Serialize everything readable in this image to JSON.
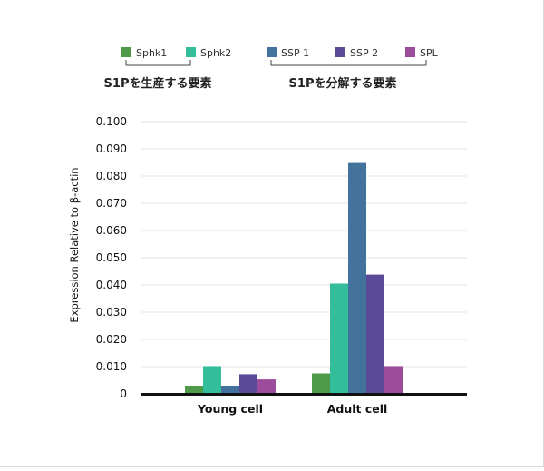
{
  "chart_data": {
    "type": "bar",
    "categories": [
      "Young cell",
      "Adult cell"
    ],
    "series": [
      {
        "name": "Sphk1",
        "color": "#4e9a48",
        "values": [
          0.003,
          0.0075
        ]
      },
      {
        "name": "Sphk2",
        "color": "#33bd9b",
        "values": [
          0.0102,
          0.0405
        ]
      },
      {
        "name": "SSP 1",
        "color": "#43739c",
        "values": [
          0.003,
          0.0848
        ]
      },
      {
        "name": "SSP 2",
        "color": "#5b4a97",
        "values": [
          0.0072,
          0.0438
        ]
      },
      {
        "name": "SPL",
        "color": "#9b4d9c",
        "values": [
          0.0053,
          0.0102
        ]
      }
    ],
    "legend_groups": [
      {
        "label": "S1Pを生産する要素",
        "series": [
          "Sphk1",
          "Sphk2"
        ]
      },
      {
        "label": "S1Pを分解する要素",
        "series": [
          "SSP 1",
          "SSP 2",
          "SPL"
        ]
      }
    ],
    "ylabel": "Expression Relative to β-actin",
    "xlabel": "",
    "ylim": [
      0,
      0.1
    ],
    "yticks": [
      "0",
      "0.010",
      "0.020",
      "0.030",
      "0.040",
      "0.050",
      "0.060",
      "0.070",
      "0.080",
      "0.090",
      "0.100"
    ],
    "grid": true,
    "legend_position": "top"
  }
}
